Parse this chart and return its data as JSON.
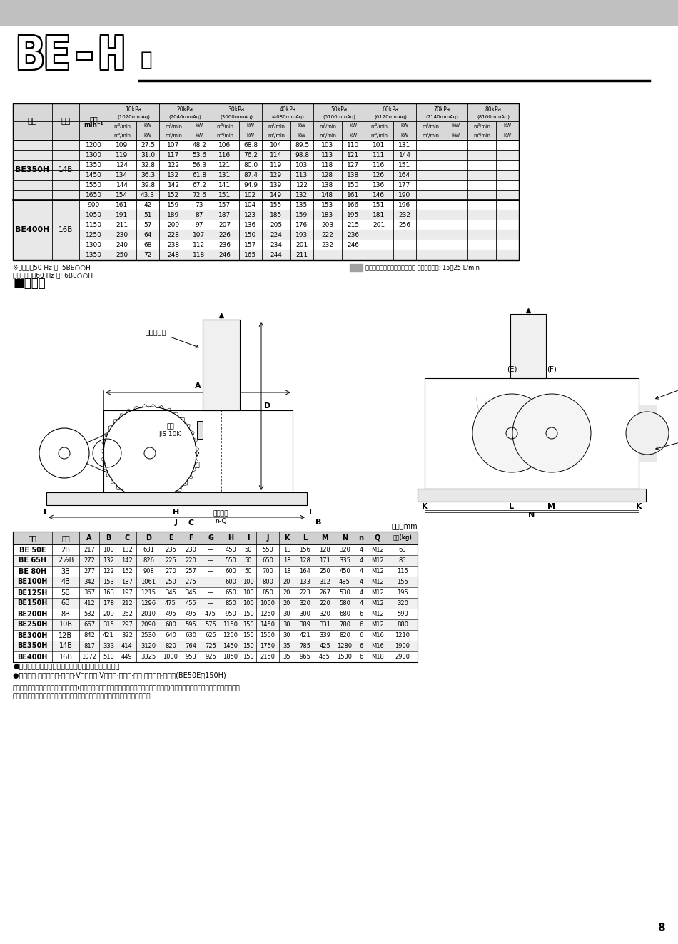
{
  "header_bg": "#c8c8c8",
  "title_beh": "BE-H",
  "title_type": "型",
  "table1_pressure_labels": [
    "10kPa\n(1020mmAq)",
    "20kPa\n(2040mmAq)",
    "30kPa\n(3060mmAq)",
    "40kPa\n(4080mmAq)",
    "50kPa\n(5100mmAq)",
    "60kPa\n(6120mmAq)",
    "70kPa\n(7140mmAq)",
    "80kPa\n(8160mmAq)"
  ],
  "be350h_rows": [
    [
      1200,
      109,
      27.5,
      107,
      48.2,
      106,
      68.8,
      104,
      89.5,
      103,
      110,
      101,
      131,
      "",
      "",
      "",
      ""
    ],
    [
      1300,
      119,
      31.0,
      117,
      53.6,
      116,
      76.2,
      114,
      98.8,
      113,
      121,
      111,
      144,
      "",
      "",
      "",
      ""
    ],
    [
      1350,
      124,
      32.8,
      122,
      56.3,
      121,
      80.0,
      119,
      103,
      118,
      127,
      116,
      151,
      "",
      "",
      "",
      ""
    ],
    [
      1450,
      134,
      36.3,
      132,
      61.8,
      131,
      87.4,
      129,
      113,
      128,
      138,
      126,
      164,
      "",
      "",
      "",
      ""
    ],
    [
      1550,
      144,
      39.8,
      142,
      67.2,
      141,
      94.9,
      139,
      122,
      138,
      150,
      136,
      177,
      "",
      "",
      "",
      ""
    ],
    [
      1650,
      154,
      43.3,
      152,
      72.6,
      151,
      102,
      149,
      132,
      148,
      161,
      146,
      190,
      "",
      "",
      "",
      ""
    ]
  ],
  "be400h_rows": [
    [
      900,
      161,
      42,
      159,
      73,
      157,
      104,
      155,
      135,
      153,
      166,
      151,
      196,
      "",
      "",
      "",
      ""
    ],
    [
      1050,
      191,
      51,
      189,
      87,
      187,
      123,
      185,
      159,
      183,
      195,
      181,
      232,
      "",
      "",
      "",
      ""
    ],
    [
      1150,
      211,
      57,
      209,
      97,
      207,
      136,
      205,
      176,
      203,
      215,
      201,
      256,
      "",
      "",
      "",
      ""
    ],
    [
      1250,
      230,
      64,
      228,
      107,
      226,
      150,
      224,
      193,
      222,
      236,
      "",
      "",
      "",
      "",
      "",
      ""
    ],
    [
      1300,
      240,
      68,
      238,
      112,
      236,
      157,
      234,
      201,
      232,
      246,
      "",
      "",
      "",
      "",
      "",
      ""
    ],
    [
      1350,
      250,
      72,
      248,
      118,
      246,
      165,
      244,
      211,
      "",
      "",
      "",
      "",
      "",
      "",
      "",
      ""
    ]
  ],
  "note1": "※型号　　50 Hz 型: 5BE○○H",
  "note2": "　　　　　　60 Hz 型: 6BE○○H",
  "note3": "截面所示为水冷式壳体和齿轮盖 冷冻液流速为: 15到25 L/min",
  "section_title": "■外形图",
  "table2_headers": [
    "型号",
    "口径",
    "A",
    "B",
    "C",
    "D",
    "E",
    "F",
    "G",
    "H",
    "I",
    "J",
    "K",
    "L",
    "M",
    "N",
    "n",
    "Q",
    "重量(kg)"
  ],
  "table2_rows": [
    [
      "BE 50E",
      "2B",
      217,
      100,
      132,
      631,
      235,
      230,
      "—",
      450,
      50,
      550,
      18,
      156,
      128,
      320,
      4,
      "M12",
      60
    ],
    [
      "BE 65H",
      "2¹⁄₂B",
      272,
      132,
      142,
      826,
      225,
      220,
      "—",
      550,
      50,
      650,
      18,
      128,
      171,
      335,
      4,
      "M12",
      85
    ],
    [
      "BE 80H",
      "3B",
      277,
      122,
      152,
      908,
      270,
      257,
      "—",
      600,
      50,
      700,
      18,
      164,
      250,
      450,
      4,
      "M12",
      115
    ],
    [
      "BE100H",
      "4B",
      342,
      153,
      187,
      1061,
      250,
      275,
      "—",
      600,
      100,
      800,
      20,
      133,
      312,
      485,
      4,
      "M12",
      155
    ],
    [
      "BE125H",
      "5B",
      367,
      163,
      197,
      1215,
      345,
      345,
      "—",
      650,
      100,
      850,
      20,
      223,
      267,
      530,
      4,
      "M12",
      195
    ],
    [
      "BE150H",
      "6B",
      412,
      178,
      212,
      1296,
      475,
      455,
      "—",
      850,
      100,
      1050,
      20,
      320,
      220,
      580,
      4,
      "M12",
      320
    ],
    [
      "BE200H",
      "8B",
      532,
      209,
      262,
      2010,
      495,
      495,
      475,
      950,
      150,
      1250,
      30,
      300,
      320,
      680,
      6,
      "M12",
      590
    ],
    [
      "BE250H",
      "10B",
      667,
      315,
      297,
      2090,
      600,
      595,
      575,
      1150,
      150,
      1450,
      30,
      389,
      331,
      780,
      6,
      "M12",
      880
    ],
    [
      "BE300H",
      "12B",
      842,
      421,
      322,
      2530,
      640,
      630,
      625,
      1250,
      150,
      1550,
      30,
      421,
      339,
      820,
      6,
      "M16",
      1210
    ],
    [
      "BE350H",
      "14B",
      817,
      333,
      414,
      3120,
      820,
      764,
      725,
      1450,
      150,
      1750,
      35,
      785,
      425,
      1280,
      6,
      "M16",
      1900
    ],
    [
      "BE400H",
      "16B",
      1072,
      510,
      449,
      3325,
      1000,
      953,
      925,
      1850,
      150,
      2150,
      35,
      965,
      465,
      1500,
      6,
      "M18",
      2900
    ]
  ],
  "note_weight": "●重量为除了马达以外，包括标准附件的鼓风机的重量。",
  "note_std": "●标准附件 吸入消音器·安全阀·V形皮带轮·V形皮带·压力计·基座·皮带罩盖·单向阀(BE50E～150H)",
  "note_b1": "注：请注意基座的尺寸可能因具体马达(特殊结构马达、交直流通用马达、变频器专用马达等)以及带滑动基座的马达不同而发生变化。",
  "note_b2": "　　防振动装置、橡胶振动隔离器、以及附带空气过滤器的吸入消音器可供选择。",
  "page_num": "8"
}
